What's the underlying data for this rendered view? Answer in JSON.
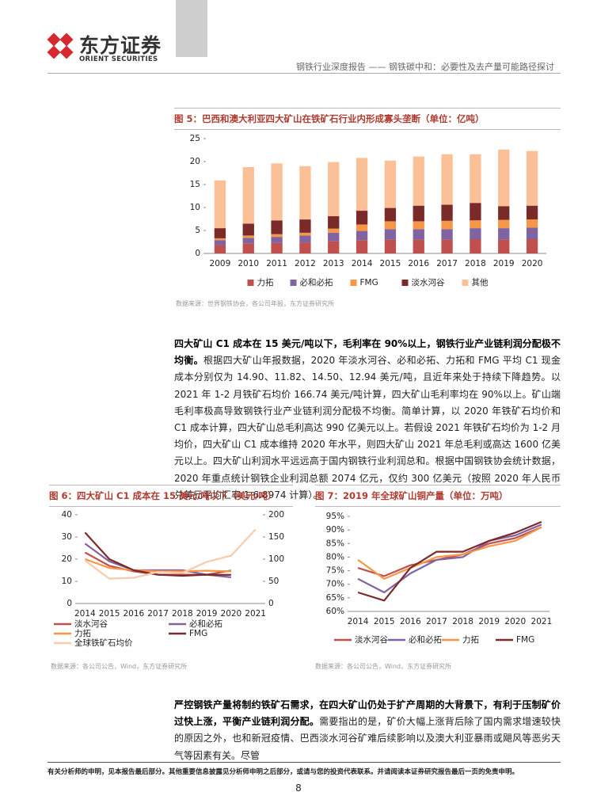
{
  "header": {
    "logo_cn": "东方证券",
    "logo_en": "ORIENT SECURITIES",
    "report": "钢铁行业深度报告 —— 钢铁碳中和：必要性及去产量可能路径探讨"
  },
  "chart_data": [
    {
      "type": "bar",
      "stacked": true,
      "title": "图 5：巴西和澳大利亚四大矿山在铁矿石行业内形成寡头垄断（单位：亿吨）",
      "categories": [
        "2009",
        "2010",
        "2011",
        "2012",
        "2013",
        "2014",
        "2015",
        "2016",
        "2017",
        "2018",
        "2019",
        "2020"
      ],
      "series": [
        {
          "name": "力拓",
          "color": "#c0504d",
          "values": [
            1.8,
            2.2,
            2.3,
            2.4,
            2.7,
            2.9,
            3.0,
            3.0,
            3.0,
            3.1,
            3.0,
            3.1
          ]
        },
        {
          "name": "必和必拓",
          "color": "#8064a2",
          "values": [
            1.1,
            1.2,
            1.3,
            1.5,
            1.8,
            2.0,
            2.3,
            2.3,
            2.3,
            2.4,
            2.5,
            2.5
          ]
        },
        {
          "name": "FMG",
          "color": "#f79646",
          "values": [
            0.4,
            0.5,
            0.6,
            0.6,
            0.9,
            1.4,
            1.7,
            1.7,
            1.8,
            1.7,
            1.8,
            1.8
          ]
        },
        {
          "name": "淡水河谷",
          "color": "#7b2a2a",
          "values": [
            2.2,
            2.6,
            3.0,
            2.9,
            2.7,
            3.0,
            2.9,
            3.4,
            3.5,
            3.8,
            3.0,
            3.0
          ]
        },
        {
          "name": "其他",
          "color": "#fbc096",
          "values": [
            10.4,
            12.3,
            12.4,
            11.6,
            11.8,
            11.5,
            10.3,
            10.7,
            11.0,
            10.6,
            12.3,
            11.9
          ]
        }
      ],
      "ylim": [
        0,
        25
      ],
      "yticks": [
        0,
        5,
        10,
        15,
        20,
        25
      ],
      "grid": false,
      "source": "数据来源：世界钢铁协会，各公司年报，东方证券研究所"
    },
    {
      "type": "line",
      "title": "图 6：四大矿山 C1 成本在 15 美元/吨以下（美元/吨）",
      "categories": [
        "2014",
        "2015",
        "2016",
        "2017",
        "2018",
        "2019",
        "2020",
        "2021"
      ],
      "series": [
        {
          "name": "淡水河谷",
          "color": "#c0504d",
          "values": [
            23,
            17,
            14.5,
            13,
            13,
            13,
            14.9,
            null
          ]
        },
        {
          "name": "必和必拓",
          "color": "#8064a2",
          "values": [
            27,
            19,
            15,
            15,
            15,
            13,
            11.82,
            null
          ]
        },
        {
          "name": "力拓",
          "color": "#f79646",
          "values": [
            20,
            16,
            15,
            14.5,
            14.5,
            14.8,
            14.5,
            null
          ]
        },
        {
          "name": "FMG",
          "color": "#7b2a2a",
          "values": [
            32,
            20,
            15,
            13,
            12.5,
            13,
            12.94,
            null
          ]
        },
        {
          "name": "全球铁矿石均价",
          "color": "#f8cbad",
          "axis": "y2",
          "values": [
            97,
            56,
            58,
            71,
            69,
            94,
            108,
            166.74
          ]
        }
      ],
      "ylim": [
        0,
        40
      ],
      "yticks": [
        0,
        10,
        20,
        30,
        40
      ],
      "y2lim": [
        0,
        200
      ],
      "y2ticks": [
        0,
        50,
        100,
        150,
        200
      ],
      "grid": false,
      "source": "数据来源：各公司公告，Wind，东方证券研究所"
    },
    {
      "type": "line",
      "title": "图 7：2019 年全球矿山铜产量（单位：万吨）",
      "categories": [
        "2014",
        "2015",
        "2016",
        "2017",
        "2018",
        "2019",
        "2020",
        "2021"
      ],
      "series": [
        {
          "name": "淡水河谷",
          "color": "#c0504d",
          "values": [
            76,
            73,
            77,
            79,
            81,
            85,
            87,
            91
          ]
        },
        {
          "name": "必和必拓",
          "color": "#8064a2",
          "values": [
            72,
            67,
            74,
            79,
            80,
            86,
            88,
            92
          ]
        },
        {
          "name": "力拓",
          "color": "#f79646",
          "values": [
            79,
            72,
            76,
            80,
            81,
            84,
            86,
            91
          ]
        },
        {
          "name": "FMG",
          "color": "#7b2a2a",
          "values": [
            67,
            64,
            76,
            82,
            82,
            86,
            89,
            93
          ]
        }
      ],
      "ylim": [
        60,
        95
      ],
      "yticks": [
        {
          "value": 60,
          "label": "60%"
        },
        {
          "value": 65,
          "label": "65%"
        },
        {
          "value": 70,
          "label": "70%"
        },
        {
          "value": 75,
          "label": "75%"
        },
        {
          "value": 80,
          "label": "80%"
        },
        {
          "value": 85,
          "label": "85%"
        },
        {
          "value": 90,
          "label": "90%"
        },
        {
          "value": 95,
          "label": "95%"
        }
      ],
      "grid": false,
      "source": "数据来源：各公司公告，Wind，东方证券研究所"
    }
  ],
  "paragraphs": [
    {
      "bold": "四大矿山 C1 成本在 15 美元/吨以下，毛利率在 90%以上，钢铁行业产业链利润分配极不均衡。",
      "text": "根据四大矿山年报数据，2020 年淡水河谷、必和必拓、力拓和 FMG 平均 C1 现金成本分别仅为 14.90、11.82、14.50、12.94 美元/吨，且近年来处于持续下降趋势。以 2021 年 1-2 月铁矿石均价 166.74 美元/吨计算，四大矿山毛利率均在 90%以上。矿山端毛利率极高导致钢铁行业产业链利润分配极不均衡。简单计算，以 2020 年铁矿石均价和 C1 成本计算，四大矿山总毛利高达 990 亿美元以上。若假设 2021 年铁矿石均价为 1-2 月均价，四大矿山 C1 成本维持 2020 年水平，则四大矿山 2021 年总毛利或高达 1600 亿美元以上。四大矿山利润水平远远高于国内钢铁行业利润总和。根据中国钢铁协会统计数据，2020 年重点统计钢铁企业利润总额 2074 亿元，仅约 300 亿美元（按照 2020 年人民币兑美元平均汇率 1:6.8974 计算）。"
    },
    {
      "bold": "严控钢铁产量将制约铁矿石需求，在四大矿山仍处于扩产周期的大背景下，有利于压制矿价过快上涨，平衡产业链利润分配。",
      "text": "需要指出的是，矿价大幅上涨背后除了国内需求增速较快的原因之外，也和新冠疫情、巴西淡水河谷矿难后续影响以及澳大利亚暴雨或飓风等恶劣天气等因素有关。尽管"
    }
  ],
  "footer": {
    "disclaimer": "有关分析师的申明，见本报告最后部分。其他重要信息披露见分析师申明之后部分，或请与您的投资代表联系。并请阅读本证券研究报告最后一页的免责申明。",
    "page": "8"
  }
}
